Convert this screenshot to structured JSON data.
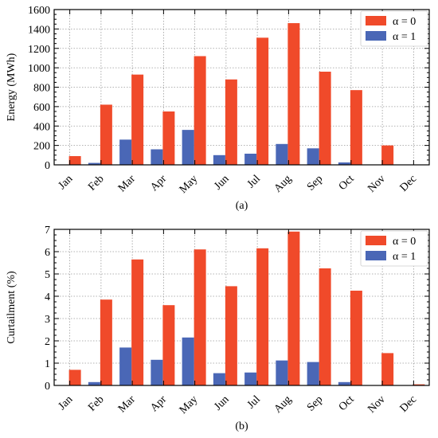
{
  "colors": {
    "series_a": "#f04a2a",
    "series_b": "#4a67b6"
  },
  "chart_data": [
    {
      "type": "bar",
      "caption": "(a)",
      "ylabel": "Energy (MWh)",
      "xlabel": "",
      "ylim": [
        0,
        1600
      ],
      "yticks": [
        0,
        200,
        400,
        600,
        800,
        1000,
        1200,
        1400,
        1600
      ],
      "grid": true,
      "legend_position": "top-right",
      "categories": [
        "Jan",
        "Feb",
        "Mar",
        "Apr",
        "May",
        "Jun",
        "Jul",
        "Aug",
        "Sep",
        "Oct",
        "Nov",
        "Dec"
      ],
      "series": [
        {
          "name": "α = 0",
          "color": "#f04a2a",
          "values": [
            90,
            620,
            930,
            550,
            1120,
            880,
            1310,
            1460,
            960,
            770,
            200,
            0
          ]
        },
        {
          "name": "α = 1",
          "color": "#4a67b6",
          "values": [
            0,
            20,
            260,
            160,
            360,
            100,
            115,
            215,
            170,
            25,
            0,
            0
          ]
        }
      ]
    },
    {
      "type": "bar",
      "caption": "(b)",
      "ylabel": "Curtailment (%)",
      "xlabel": "",
      "ylim": [
        0,
        7
      ],
      "yticks": [
        0,
        1,
        2,
        3,
        4,
        5,
        6,
        7
      ],
      "grid": true,
      "legend_position": "top-right",
      "categories": [
        "Jan",
        "Feb",
        "Mar",
        "Apr",
        "May",
        "Jun",
        "Jul",
        "Aug",
        "Sep",
        "Oct",
        "Nov",
        "Dec"
      ],
      "series": [
        {
          "name": "α = 0",
          "color": "#f04a2a",
          "values": [
            0.7,
            3.85,
            5.65,
            3.6,
            6.1,
            4.45,
            6.15,
            6.9,
            5.25,
            4.25,
            1.45,
            0.05
          ]
        },
        {
          "name": "α = 1",
          "color": "#4a67b6",
          "values": [
            0,
            0.15,
            1.7,
            1.15,
            2.15,
            0.55,
            0.58,
            1.12,
            1.05,
            0.15,
            0,
            0
          ]
        }
      ]
    }
  ]
}
